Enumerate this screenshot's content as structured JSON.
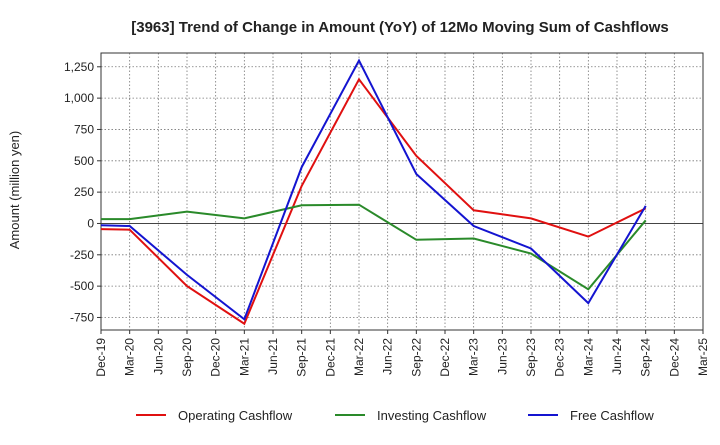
{
  "chart_data": {
    "type": "line",
    "title": "[3963]  Trend of Change in Amount (YoY) of 12Mo Moving Sum of Cashflows",
    "xlabel": "",
    "ylabel": "Amount (million yen)",
    "ylim": [
      -850,
      1360
    ],
    "grid": true,
    "legend_position": "bottom",
    "y_ticks": [
      -750,
      -500,
      -250,
      0,
      250,
      500,
      750,
      1000,
      1250
    ],
    "y_tick_labels": [
      "-750",
      "-500",
      "-250",
      "0",
      "250",
      "500",
      "750",
      "1,000",
      "1,250"
    ],
    "categories": [
      "Dec-19",
      "Mar-20",
      "Jun-20",
      "Sep-20",
      "Dec-20",
      "Mar-21",
      "Jun-21",
      "Sep-21",
      "Dec-21",
      "Mar-22",
      "Jun-22",
      "Sep-22",
      "Dec-22",
      "Mar-23",
      "Jun-23",
      "Sep-23",
      "Dec-23",
      "Mar-24",
      "Jun-24",
      "Sep-24",
      "Dec-24",
      "Mar-25"
    ],
    "series": [
      {
        "name": "Operating Cashflow",
        "color": "#e01010",
        "points": [
          [
            "Dec-19",
            -45
          ],
          [
            "Mar-20",
            -50
          ],
          [
            "Sep-20",
            -500
          ],
          [
            "Mar-21",
            -800
          ],
          [
            "Sep-21",
            300
          ],
          [
            "Mar-22",
            1150
          ],
          [
            "Sep-22",
            540
          ],
          [
            "Mar-23",
            105
          ],
          [
            "Sep-23",
            40
          ],
          [
            "Mar-24",
            -105
          ],
          [
            "Sep-24",
            120
          ]
        ]
      },
      {
        "name": "Investing Cashflow",
        "color": "#2a8a2a",
        "points": [
          [
            "Dec-19",
            35
          ],
          [
            "Mar-20",
            35
          ],
          [
            "Sep-20",
            95
          ],
          [
            "Mar-21",
            40
          ],
          [
            "Sep-21",
            145
          ],
          [
            "Mar-22",
            150
          ],
          [
            "Sep-22",
            -130
          ],
          [
            "Mar-23",
            -120
          ],
          [
            "Sep-23",
            -240
          ],
          [
            "Mar-24",
            -525
          ],
          [
            "Sep-24",
            25
          ]
        ]
      },
      {
        "name": "Free Cashflow",
        "color": "#1414d0",
        "points": [
          [
            "Dec-19",
            -15
          ],
          [
            "Mar-20",
            -20
          ],
          [
            "Sep-20",
            -410
          ],
          [
            "Mar-21",
            -765
          ],
          [
            "Sep-21",
            450
          ],
          [
            "Mar-22",
            1300
          ],
          [
            "Sep-22",
            395
          ],
          [
            "Mar-23",
            -20
          ],
          [
            "Sep-23",
            -200
          ],
          [
            "Mar-24",
            -635
          ],
          [
            "Sep-24",
            140
          ]
        ]
      }
    ]
  }
}
